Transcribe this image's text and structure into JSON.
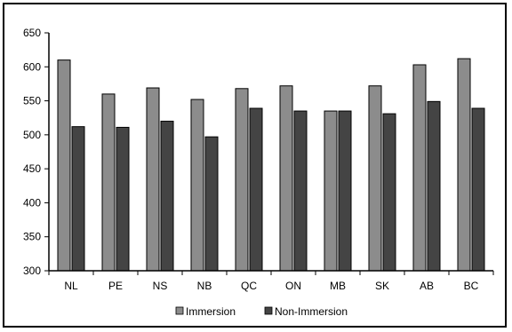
{
  "chart_data": {
    "type": "bar",
    "title": "",
    "xlabel": "",
    "ylabel": "",
    "categories": [
      "NL",
      "PE",
      "NS",
      "NB",
      "QC",
      "ON",
      "MB",
      "SK",
      "AB",
      "BC"
    ],
    "series": [
      {
        "name": "Immersion",
        "color": "#8c8c8c",
        "values": [
          610,
          560,
          569,
          552,
          568,
          572,
          535,
          572,
          603,
          612
        ]
      },
      {
        "name": "Non-Immersion",
        "color": "#444444",
        "values": [
          512,
          511,
          520,
          497,
          539,
          535,
          535,
          531,
          549,
          539
        ]
      }
    ],
    "ylim": [
      300,
      650
    ],
    "yticks": [
      300,
      350,
      400,
      450,
      500,
      550,
      600,
      650
    ],
    "grid": false,
    "legend_position": "bottom"
  }
}
